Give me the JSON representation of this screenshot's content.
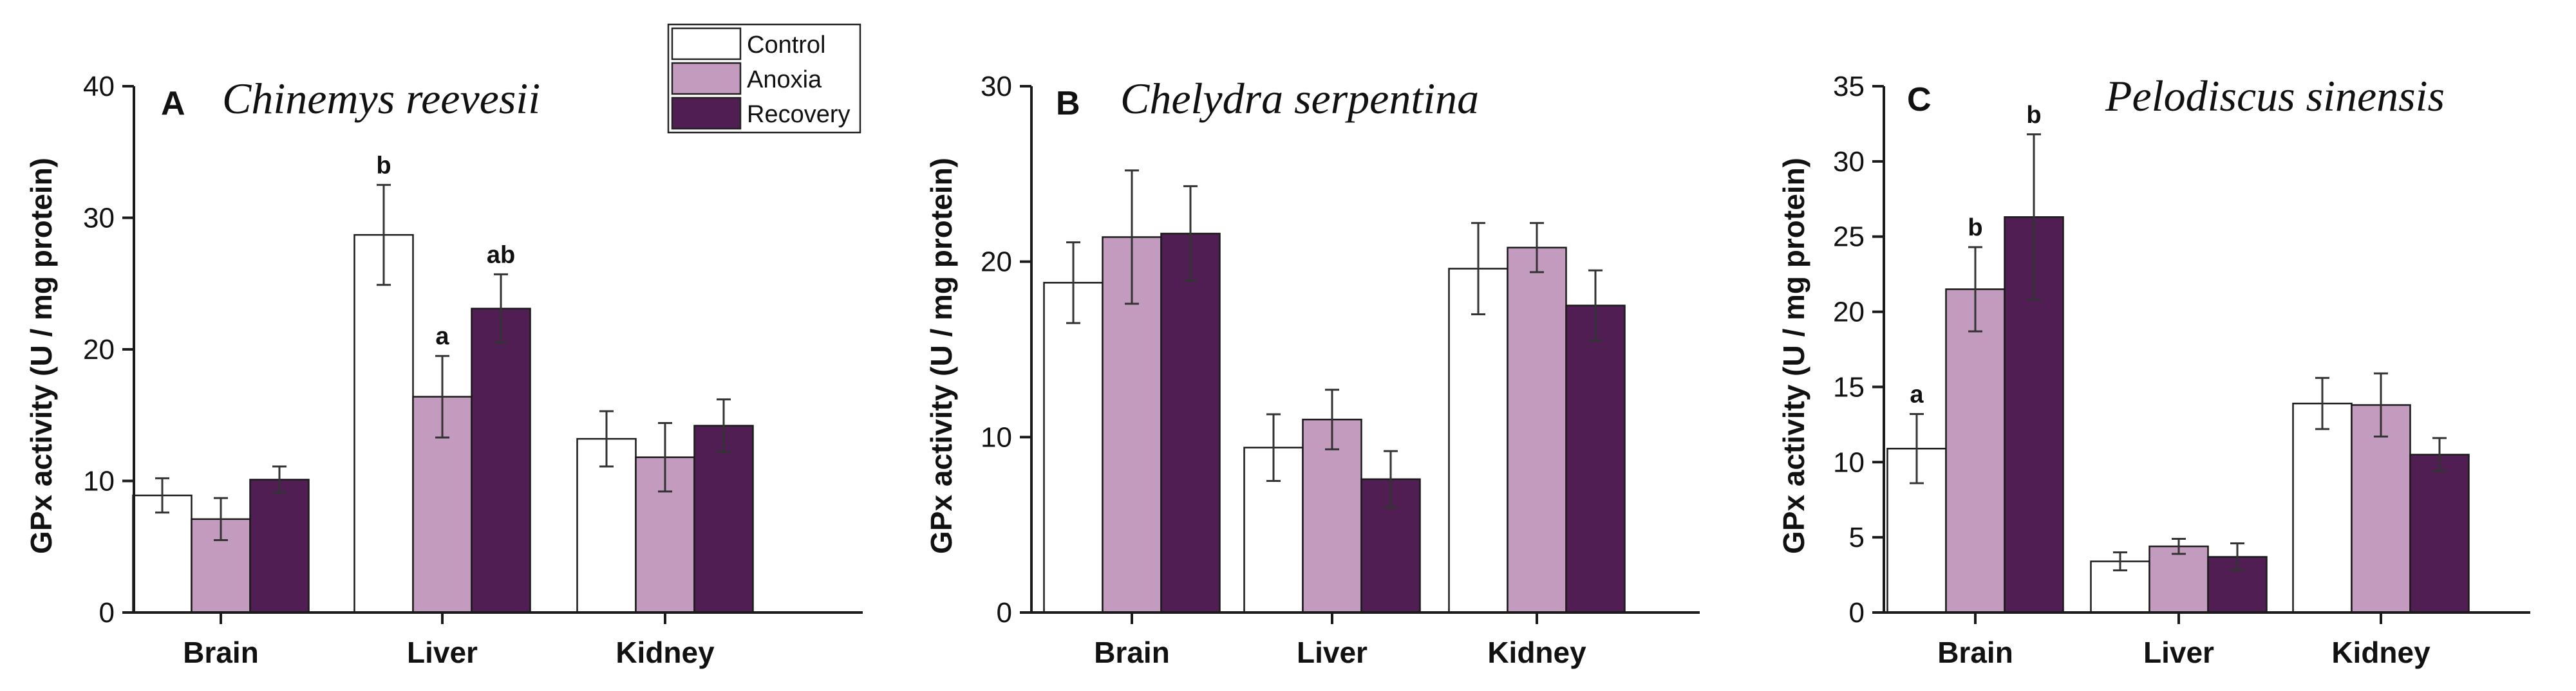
{
  "colors": {
    "Control": "#ffffff",
    "Anoxia": "#c39bbe",
    "Recovery": "#511e54"
  },
  "legend": {
    "entries": [
      "Control",
      "Anoxia",
      "Recovery"
    ]
  },
  "chart_data": [
    {
      "type": "bar",
      "panel": "A",
      "title": "Chinemys reevesii",
      "ylabel": "GPx activity (U / mg protein)",
      "xlabel": "",
      "categories": [
        "Brain",
        "Liver",
        "Kidney"
      ],
      "ylim": [
        0,
        40
      ],
      "yticks": [
        0,
        10,
        20,
        30,
        40
      ],
      "series": [
        {
          "name": "Control",
          "values": [
            8.9,
            28.7,
            13.2
          ],
          "errors": [
            1.3,
            3.8,
            2.1
          ],
          "labels": [
            "",
            "b",
            ""
          ]
        },
        {
          "name": "Anoxia",
          "values": [
            7.1,
            16.4,
            11.8
          ],
          "errors": [
            1.6,
            3.1,
            2.6
          ],
          "labels": [
            "",
            "a",
            ""
          ]
        },
        {
          "name": "Recovery",
          "values": [
            10.1,
            23.1,
            14.2
          ],
          "errors": [
            1.0,
            2.6,
            2.0
          ],
          "labels": [
            "",
            "ab",
            ""
          ]
        }
      ]
    },
    {
      "type": "bar",
      "panel": "B",
      "title": "Chelydra serpentina",
      "ylabel": "GPx activity (U / mg protein)",
      "xlabel": "",
      "categories": [
        "Brain",
        "Liver",
        "Kidney"
      ],
      "ylim": [
        0,
        30
      ],
      "yticks": [
        0,
        10,
        20,
        30
      ],
      "series": [
        {
          "name": "Control",
          "values": [
            18.8,
            9.4,
            19.6
          ],
          "errors": [
            2.3,
            1.9,
            2.6
          ],
          "labels": [
            "",
            "",
            ""
          ]
        },
        {
          "name": "Anoxia",
          "values": [
            21.4,
            11.0,
            20.8
          ],
          "errors": [
            3.8,
            1.7,
            1.4
          ],
          "labels": [
            "",
            "",
            ""
          ]
        },
        {
          "name": "Recovery",
          "values": [
            21.6,
            7.6,
            17.5
          ],
          "errors": [
            2.7,
            1.6,
            2.0
          ],
          "labels": [
            "",
            "",
            ""
          ]
        }
      ]
    },
    {
      "type": "bar",
      "panel": "C",
      "title": "Pelodiscus sinensis",
      "ylabel": "GPx activity (U / mg protein)",
      "xlabel": "",
      "categories": [
        "Brain",
        "Liver",
        "Kidney"
      ],
      "ylim": [
        0,
        35
      ],
      "yticks": [
        0,
        5,
        10,
        15,
        20,
        25,
        30,
        35
      ],
      "series": [
        {
          "name": "Control",
          "values": [
            10.9,
            3.4,
            13.9
          ],
          "errors": [
            2.3,
            0.6,
            1.7
          ],
          "labels": [
            "a",
            "",
            ""
          ]
        },
        {
          "name": "Anoxia",
          "values": [
            21.5,
            4.4,
            13.8
          ],
          "errors": [
            2.8,
            0.5,
            2.1
          ],
          "labels": [
            "b",
            "",
            ""
          ]
        },
        {
          "name": "Recovery",
          "values": [
            26.3,
            3.7,
            10.5
          ],
          "errors": [
            5.5,
            0.9,
            1.1
          ],
          "labels": [
            "b",
            "",
            ""
          ]
        }
      ]
    }
  ]
}
